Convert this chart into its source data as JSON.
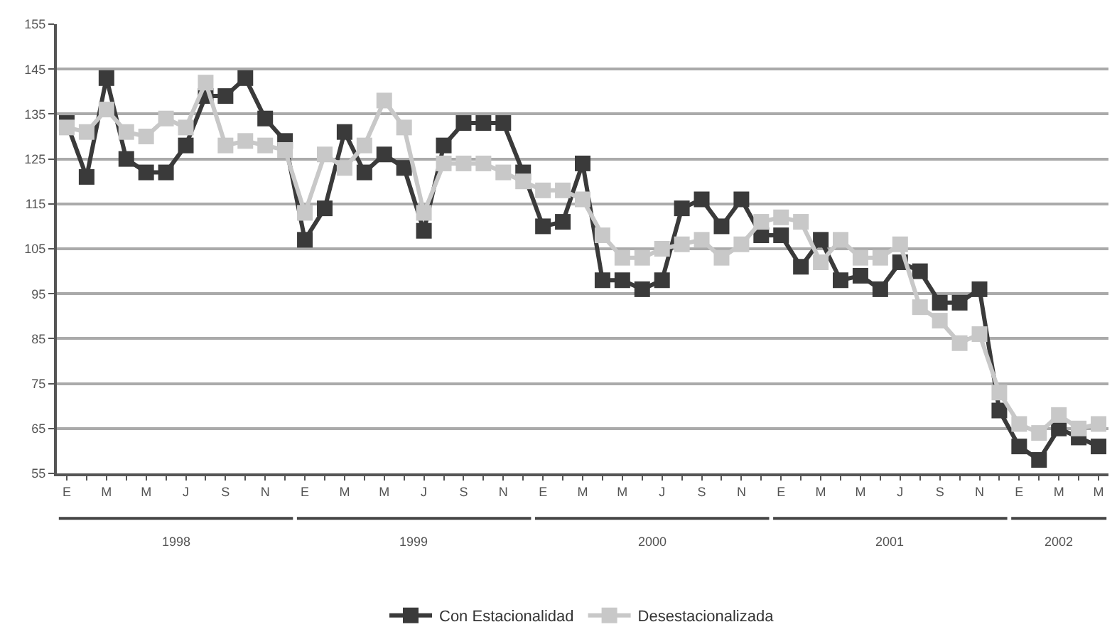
{
  "chart_data": {
    "type": "line",
    "categories": [
      "E",
      null,
      "M",
      null,
      "M",
      null,
      "J",
      null,
      "S",
      null,
      "N",
      null,
      "E",
      null,
      "M",
      null,
      "M",
      null,
      "J",
      null,
      "S",
      null,
      "N",
      null,
      "E",
      null,
      "M",
      null,
      "M",
      null,
      "J",
      null,
      "S",
      null,
      "N",
      null,
      "E",
      null,
      "M",
      null,
      "M",
      null,
      "J",
      null,
      "S",
      null,
      "N",
      null,
      "E",
      null,
      "M",
      null,
      "M"
    ],
    "series": [
      {
        "name": "Con Estacionalidad",
        "color": "#3a3a3a",
        "values": [
          133,
          121,
          143,
          125,
          122,
          122,
          128,
          139,
          139,
          143,
          134,
          129,
          107,
          114,
          131,
          122,
          126,
          123,
          109,
          128,
          133,
          133,
          133,
          122,
          110,
          111,
          124,
          98,
          98,
          96,
          98,
          114,
          116,
          110,
          116,
          108,
          108,
          101,
          107,
          98,
          99,
          96,
          102,
          100,
          93,
          93,
          96,
          69,
          61,
          58,
          65,
          63,
          61
        ]
      },
      {
        "name": "Desestacionalizada",
        "color": "#c8c8c8",
        "values": [
          132,
          131,
          136,
          131,
          130,
          134,
          132,
          142,
          128,
          129,
          128,
          127,
          113,
          126,
          123,
          128,
          138,
          132,
          113,
          124,
          124,
          124,
          122,
          120,
          118,
          118,
          116,
          108,
          103,
          103,
          105,
          106,
          107,
          103,
          106,
          111,
          112,
          111,
          102,
          107,
          103,
          103,
          106,
          92,
          89,
          84,
          86,
          73,
          66,
          64,
          68,
          65,
          66
        ]
      }
    ],
    "ylim": [
      55,
      155
    ],
    "yticks": [
      55,
      65,
      75,
      85,
      95,
      105,
      115,
      125,
      135,
      145,
      155
    ],
    "grid": "y",
    "legend": "bottom",
    "marker": "square",
    "line_style": "solid",
    "annotations": [
      "1998",
      "1999",
      "2000",
      "2001",
      "2002"
    ]
  }
}
